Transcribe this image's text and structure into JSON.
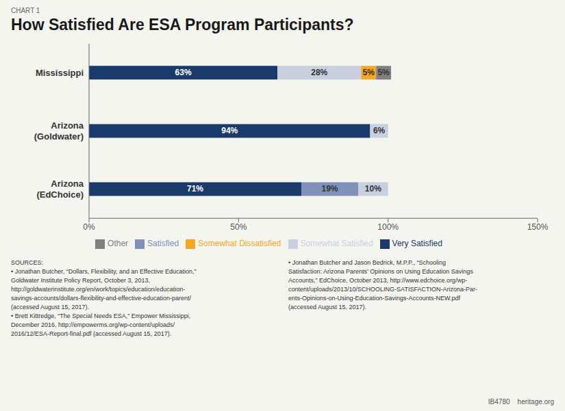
{
  "chart_data": {
    "type": "bar",
    "orientation": "horizontal",
    "stacked": true,
    "data_labels": true,
    "grid": false,
    "legend": "bottom",
    "title": "How Satisfied Are ESA Program Participants?",
    "subtitle": "CHART 1",
    "annotations": [
      "SOURCES:\n• Jonathan Butcher, “Dollars, Flexibility, and an Effective Education,”\nGoldwater Institute Policy Report, October 3, 2013,\nhttp://goldwaterinstitute.org/en/work/topics/education/education-\nsavings-accounts/dollars-flexibility-and-effective-education-parent/\n(accessed August 15, 2017).\n• Brett Kittredge, “The Special Needs ESA,” Empower Mississippi,\nDecember 2016, http://empowerms.org/wp-content/uploads/\n2016/12/ESA-Report-final.pdf (accessed August 15, 2017).",
      "• Jonathan Butcher and Jason Bedrick, M.P.P., “Schooling\nSatisfaction: Arizona Parents’ Opinions on Using Education Savings\nAccounts,” EdChoice, October 2013, http://www.edchoice.org/wp-\ncontent/uploads/2013/10/SCHOOLING-SATISFACTION-Arizona-Par-\nents-Opinions-on-Using-Education-Savings-Accounts-NEW.pdf\n(accessed August 15, 2017).",
      "IB4780    heritage.org"
    ],
    "categories": [
      "Mississippi",
      "Arizona\n(Goldwater)",
      "Arizona\n(EdChoice)"
    ],
    "series": [
      {
        "name": "Very Satisfied",
        "color": "#1a3a6b",
        "values": [
          63,
          94,
          71
        ],
        "value_labels": [
          "63%",
          "94%",
          "71%"
        ]
      },
      {
        "name": "Satisfied",
        "color": "#8090b8",
        "values": [
          null,
          null,
          19
        ],
        "value_labels": [
          null,
          null,
          "19%"
        ]
      },
      {
        "name": "Somewhat Satisfied",
        "color": "#c8d0e0",
        "values": [
          28,
          6,
          10
        ],
        "value_labels": [
          "28%",
          "6%",
          "10%"
        ]
      },
      {
        "name": "Somewhat Dissatisfied",
        "color": "#f5a623",
        "values": [
          5,
          null,
          null
        ],
        "value_labels": [
          "5%",
          null,
          null
        ]
      },
      {
        "name": "Other",
        "color": "#808080",
        "values": [
          5,
          null,
          null
        ],
        "value_labels": [
          "5%",
          null,
          null
        ]
      }
    ],
    "xlim": [
      0,
      150
    ],
    "xticks": [
      {
        "value": 0,
        "label": "0%"
      },
      {
        "value": 50,
        "label": "50%"
      },
      {
        "value": 100,
        "label": "100%"
      },
      {
        "value": 150,
        "label": "150%"
      }
    ]
  }
}
